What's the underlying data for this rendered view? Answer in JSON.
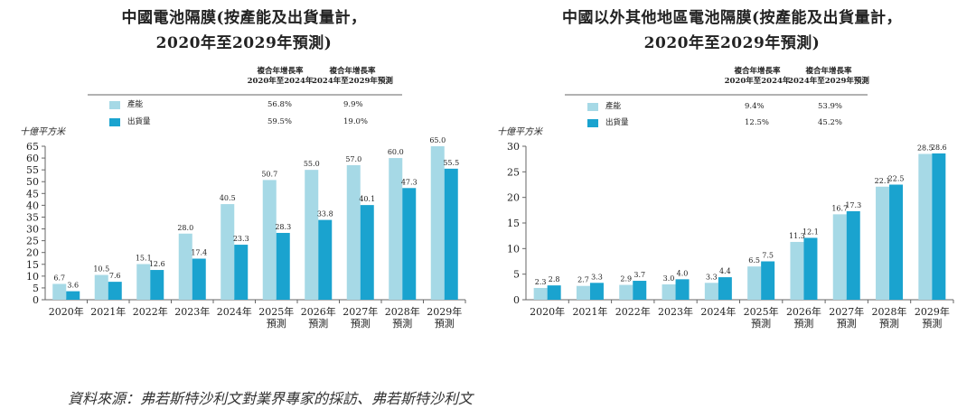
{
  "colors": {
    "capacity": "#a6d9e6",
    "shipment": "#1aa3cf",
    "axis": "#666666",
    "text": "#222222"
  },
  "chart_data": [
    {
      "type": "bar",
      "title_line1": "中國電池隔膜(按產能及出貨量計，",
      "title_line2": "2020年至2029年預測)",
      "ylabel": "十億平方米",
      "ylim": [
        0,
        65
      ],
      "yticks": [
        0,
        5,
        10,
        15,
        20,
        25,
        30,
        35,
        40,
        45,
        50,
        55,
        60,
        65
      ],
      "categories": [
        [
          "2020年"
        ],
        [
          "2021年"
        ],
        [
          "2022年"
        ],
        [
          "2023年"
        ],
        [
          "2024年"
        ],
        [
          "2025年",
          "預測"
        ],
        [
          "2026年",
          "預測"
        ],
        [
          "2027年",
          "預測"
        ],
        [
          "2028年",
          "預測"
        ],
        [
          "2029年",
          "預測"
        ]
      ],
      "series": [
        {
          "name": "產能",
          "values": [
            6.7,
            10.5,
            15.1,
            28.0,
            40.5,
            50.7,
            55.0,
            57.0,
            60.0,
            65.0
          ],
          "labels": [
            "6.7",
            "10.5",
            "15.1",
            "28.0",
            "40.5",
            "50.7",
            "55.0",
            "57.0",
            "60.0",
            "65.0"
          ]
        },
        {
          "name": "出貨量",
          "values": [
            3.6,
            7.6,
            12.6,
            17.4,
            23.3,
            28.3,
            33.8,
            40.1,
            47.3,
            55.5
          ],
          "labels": [
            "3.6",
            "7.6",
            "12.6",
            "17.4",
            "23.3",
            "28.3",
            "33.8",
            "40.1",
            "47.3",
            "55.5"
          ]
        }
      ],
      "legend_table": {
        "col1_line1": "複合年增長率",
        "col1_line2": "2020年至2024年",
        "col2_line1": "複合年增長率",
        "col2_line2": "2024年至2029年預測",
        "rows": [
          {
            "label": "產能",
            "cagr1": "56.8%",
            "cagr2": "9.9%"
          },
          {
            "label": "出貨量",
            "cagr1": "59.5%",
            "cagr2": "19.0%"
          }
        ]
      }
    },
    {
      "type": "bar",
      "title_line1": "中國以外其他地區電池隔膜(按產能及出貨量計，",
      "title_line2": "2020年至2029年預測)",
      "ylabel": "十億平方米",
      "ylim": [
        0,
        30
      ],
      "yticks": [
        0,
        5,
        10,
        15,
        20,
        25,
        30
      ],
      "categories": [
        [
          "2020年"
        ],
        [
          "2021年"
        ],
        [
          "2022年"
        ],
        [
          "2023年"
        ],
        [
          "2024年"
        ],
        [
          "2025年",
          "預測"
        ],
        [
          "2026年",
          "預測"
        ],
        [
          "2027年",
          "預測"
        ],
        [
          "2028年",
          "預測"
        ],
        [
          "2029年",
          "預測"
        ]
      ],
      "series": [
        {
          "name": "產能",
          "values": [
            2.3,
            2.7,
            2.9,
            3.0,
            3.3,
            6.5,
            11.3,
            16.7,
            22.1,
            28.5
          ],
          "labels": [
            "2.3",
            "2.7",
            "2.9",
            "3.0",
            "3.3",
            "6.5",
            "11.3",
            "16.7",
            "22.1",
            "28.5"
          ]
        },
        {
          "name": "出貨量",
          "values": [
            2.8,
            3.3,
            3.7,
            4.0,
            4.4,
            7.5,
            12.1,
            17.3,
            22.5,
            28.6
          ],
          "labels": [
            "2.8",
            "3.3",
            "3.7",
            "4.0",
            "4.4",
            "7.5",
            "12.1",
            "17.3",
            "22.5",
            "28.6"
          ]
        }
      ],
      "legend_table": {
        "col1_line1": "複合年增長率",
        "col1_line2": "2020年至2024年",
        "col2_line1": "複合年增長率",
        "col2_line2": "2024年至2029年預測",
        "rows": [
          {
            "label": "產能",
            "cagr1": "9.4%",
            "cagr2": "53.9%"
          },
          {
            "label": "出貨量",
            "cagr1": "12.5%",
            "cagr2": "45.2%"
          }
        ]
      }
    }
  ],
  "source_note": "資料來源：弗若斯特沙利文對業界專家的採訪、弗若斯特沙利文"
}
